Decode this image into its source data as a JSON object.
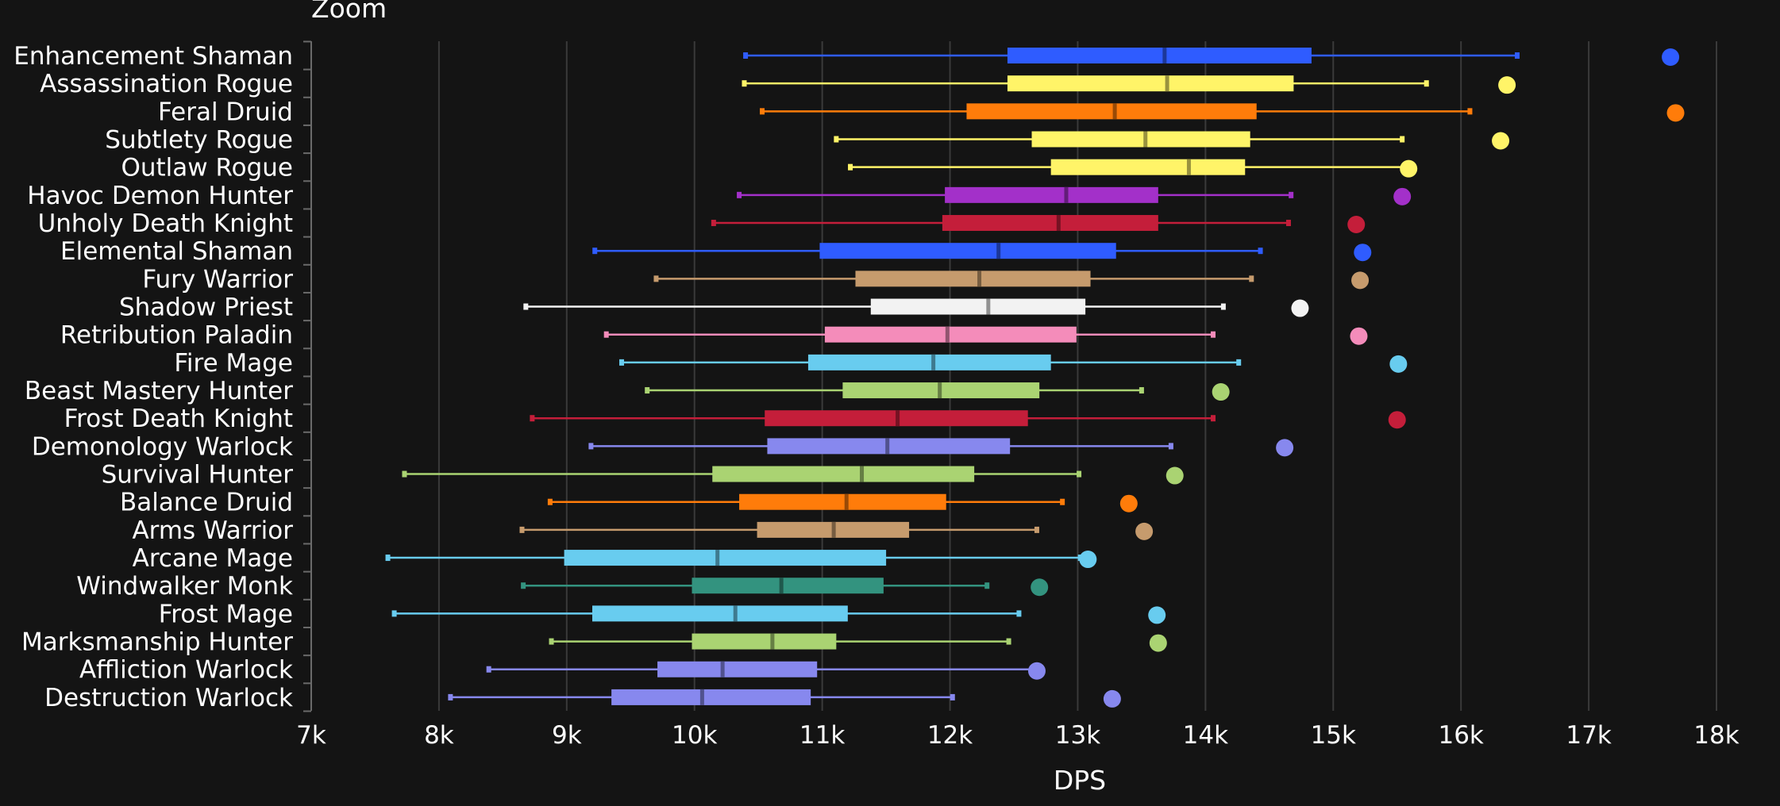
{
  "chart_data": {
    "type": "box",
    "title": "Zoom",
    "xlabel": "DPS",
    "ylabel": "",
    "xlim": [
      7000,
      18000
    ],
    "x_ticks": [
      7000,
      8000,
      9000,
      10000,
      11000,
      12000,
      13000,
      14000,
      15000,
      16000,
      17000,
      18000
    ],
    "x_tick_labels": [
      "7k",
      "8k",
      "9k",
      "10k",
      "11k",
      "12k",
      "13k",
      "14k",
      "15k",
      "16k",
      "17k",
      "18k"
    ],
    "grid": true,
    "series": [
      {
        "name": "Enhancement Shaman",
        "color": "#2f5cff",
        "min": 10400,
        "q1": 12450,
        "median": 13680,
        "q3": 14830,
        "max": 16440,
        "max_point": 17640
      },
      {
        "name": "Assassination Rogue",
        "color": "#fff468",
        "min": 10390,
        "q1": 12450,
        "median": 13700,
        "q3": 14690,
        "max": 15730,
        "max_point": 16360
      },
      {
        "name": "Feral Druid",
        "color": "#ff7c0a",
        "min": 10530,
        "q1": 12130,
        "median": 13290,
        "q3": 14400,
        "max": 16070,
        "max_point": 17680
      },
      {
        "name": "Subtlety Rogue",
        "color": "#fff468",
        "min": 11110,
        "q1": 12640,
        "median": 13530,
        "q3": 14350,
        "max": 15540,
        "max_point": 16310
      },
      {
        "name": "Outlaw Rogue",
        "color": "#fff468",
        "min": 11220,
        "q1": 12790,
        "median": 13870,
        "q3": 14310,
        "max": 15570,
        "max_point": 15590
      },
      {
        "name": "Havoc Demon Hunter",
        "color": "#a330c9",
        "min": 10350,
        "q1": 11960,
        "median": 12910,
        "q3": 13630,
        "max": 14670,
        "max_point": 15540
      },
      {
        "name": "Unholy Death Knight",
        "color": "#c41e3a",
        "min": 10150,
        "q1": 11940,
        "median": 12850,
        "q3": 13630,
        "max": 14650,
        "max_point": 15180
      },
      {
        "name": "Elemental Shaman",
        "color": "#2f5cff",
        "min": 9220,
        "q1": 10980,
        "median": 12380,
        "q3": 13300,
        "max": 14430,
        "max_point": 15230
      },
      {
        "name": "Fury Warrior",
        "color": "#c69b6d",
        "min": 9700,
        "q1": 11260,
        "median": 12230,
        "q3": 13100,
        "max": 14360,
        "max_point": 15210
      },
      {
        "name": "Shadow Priest",
        "color": "#f2f2f2",
        "min": 8680,
        "q1": 11380,
        "median": 12300,
        "q3": 13060,
        "max": 14140,
        "max_point": 14740
      },
      {
        "name": "Retribution Paladin",
        "color": "#f48cba",
        "min": 9310,
        "q1": 11020,
        "median": 11980,
        "q3": 12990,
        "max": 14060,
        "max_point": 15200
      },
      {
        "name": "Fire Mage",
        "color": "#68ccef",
        "min": 9430,
        "q1": 10890,
        "median": 11870,
        "q3": 12790,
        "max": 14260,
        "max_point": 15510
      },
      {
        "name": "Beast Mastery Hunter",
        "color": "#aad372",
        "min": 9630,
        "q1": 11160,
        "median": 11920,
        "q3": 12700,
        "max": 13500,
        "max_point": 14120
      },
      {
        "name": "Frost Death Knight",
        "color": "#c41e3a",
        "min": 8730,
        "q1": 10550,
        "median": 11590,
        "q3": 12610,
        "max": 14060,
        "max_point": 15500
      },
      {
        "name": "Demonology Warlock",
        "color": "#8788ee",
        "min": 9190,
        "q1": 10570,
        "median": 11510,
        "q3": 12470,
        "max": 13730,
        "max_point": 14620
      },
      {
        "name": "Survival Hunter",
        "color": "#aad372",
        "min": 7730,
        "q1": 10140,
        "median": 11310,
        "q3": 12190,
        "max": 13010,
        "max_point": 13760
      },
      {
        "name": "Balance Druid",
        "color": "#ff7c0a",
        "min": 8870,
        "q1": 10350,
        "median": 11190,
        "q3": 11970,
        "max": 12880,
        "max_point": 13400
      },
      {
        "name": "Arms Warrior",
        "color": "#c69b6d",
        "min": 8650,
        "q1": 10490,
        "median": 11090,
        "q3": 11680,
        "max": 12680,
        "max_point": 13520
      },
      {
        "name": "Arcane Mage",
        "color": "#68ccef",
        "min": 7600,
        "q1": 8980,
        "median": 10180,
        "q3": 11500,
        "max": 13020,
        "max_point": 13080
      },
      {
        "name": "Windwalker Monk",
        "color": "#33937f",
        "min": 8660,
        "q1": 9980,
        "median": 10680,
        "q3": 11480,
        "max": 12290,
        "max_point": 12700
      },
      {
        "name": "Frost Mage",
        "color": "#68ccef",
        "min": 7650,
        "q1": 9200,
        "median": 10320,
        "q3": 11200,
        "max": 12540,
        "max_point": 13620
      },
      {
        "name": "Marksmanship Hunter",
        "color": "#aad372",
        "min": 8880,
        "q1": 9980,
        "median": 10610,
        "q3": 11110,
        "max": 12460,
        "max_point": 13630
      },
      {
        "name": "Affliction Warlock",
        "color": "#8788ee",
        "min": 8390,
        "q1": 9710,
        "median": 10220,
        "q3": 10960,
        "max": 12640,
        "max_point": 12680
      },
      {
        "name": "Destruction Warlock",
        "color": "#8788ee",
        "min": 8090,
        "q1": 9350,
        "median": 10060,
        "q3": 10910,
        "max": 12020,
        "max_point": 13270
      }
    ]
  }
}
